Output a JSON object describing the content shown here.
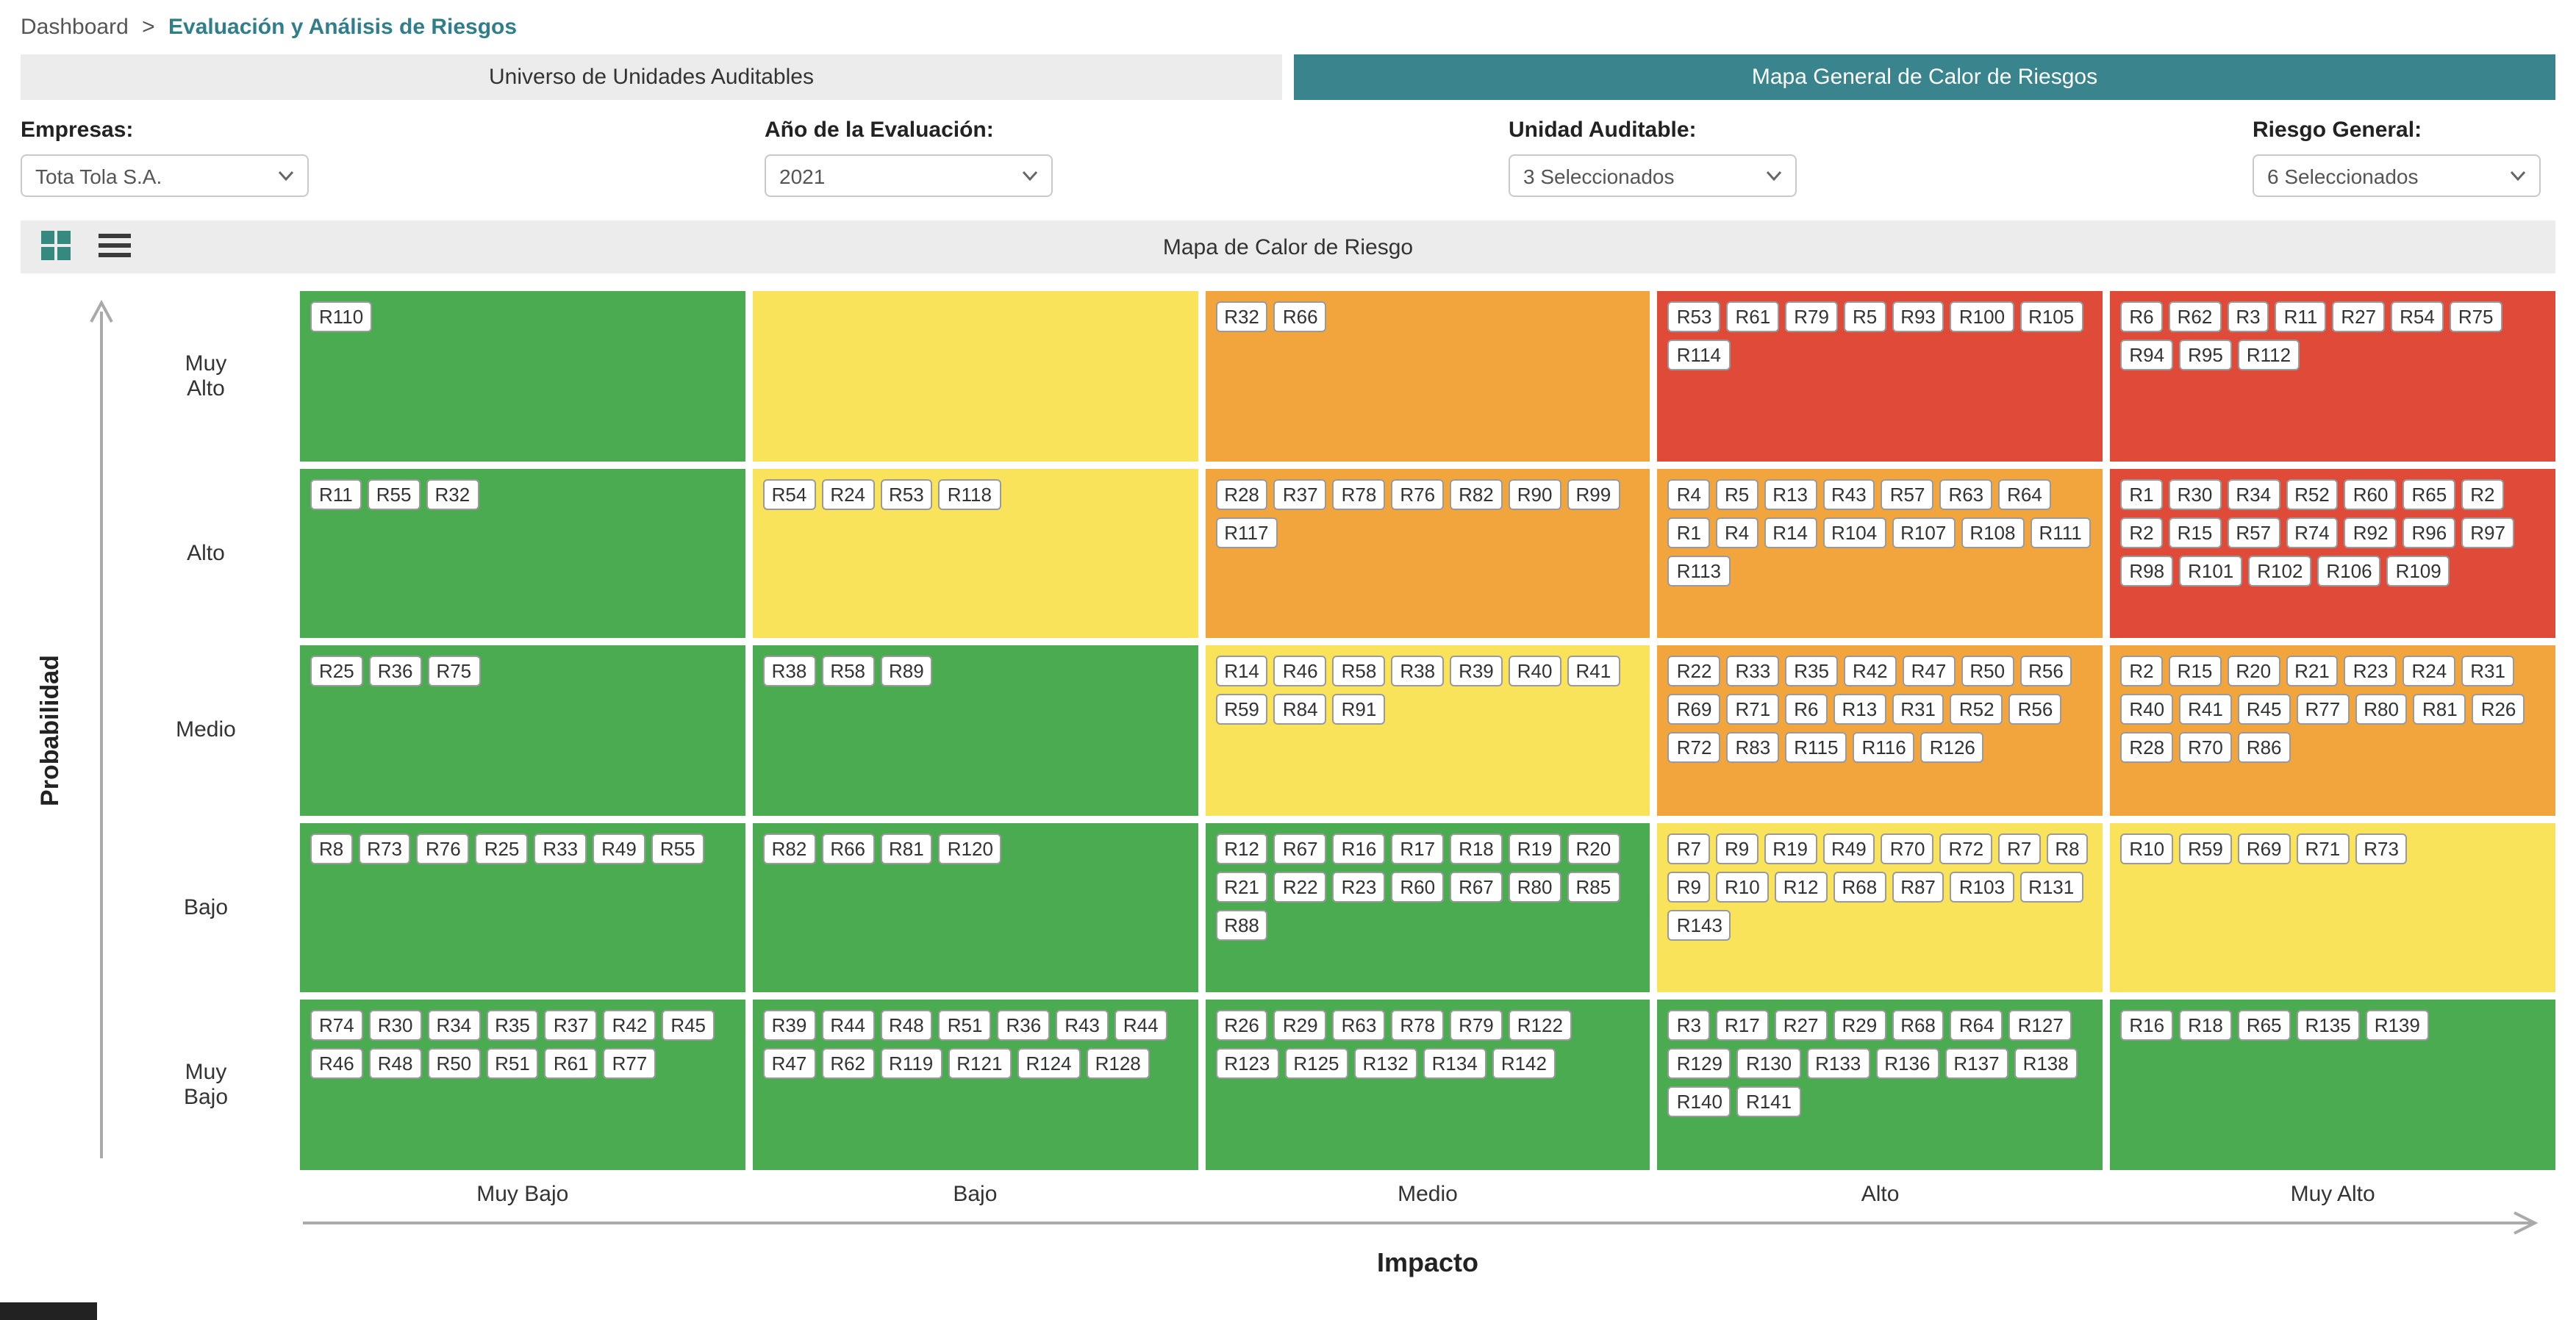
{
  "breadcrumb": {
    "root": "Dashboard",
    "separator": ">",
    "current": "Evaluación y Análisis de Riesgos"
  },
  "tabs": [
    {
      "id": "universo",
      "label": "Universo de Unidades Auditables",
      "active": false
    },
    {
      "id": "mapa-general",
      "label": "Mapa General de Calor de Riesgos",
      "active": true
    }
  ],
  "filters": [
    {
      "id": "empresas",
      "label": "Empresas:",
      "value": "Tota Tola S.A."
    },
    {
      "id": "anio-evaluacion",
      "label": "Año de la Evaluación:",
      "value": "2021"
    },
    {
      "id": "unidad-auditable",
      "label": "Unidad Auditable:",
      "value": "3 Seleccionados"
    },
    {
      "id": "riesgo-general",
      "label": "Riesgo General:",
      "value": "6 Seleccionados"
    }
  ],
  "toolbar": {
    "title": "Mapa de Calor de Riesgo",
    "view_buttons": [
      {
        "id": "grid",
        "icon": "grid-view-icon"
      },
      {
        "id": "list",
        "icon": "list-view-icon"
      }
    ]
  },
  "colors": {
    "accent": "#39848d",
    "breadcrumb_link": "#2f7e8a",
    "green": "#4aab50",
    "yellow": "#f8e35a",
    "orange": "#f2a53c",
    "red": "#df4a39"
  },
  "heatmap": {
    "y_axis_label": "Probabilidad",
    "x_axis_label": "Impacto",
    "columns": [
      "Muy Bajo",
      "Bajo",
      "Medio",
      "Alto",
      "Muy Alto"
    ],
    "colors": {
      "green": "#4aab50",
      "yellow": "#f8e35a",
      "orange": "#f2a53c",
      "red": "#df4a39"
    },
    "rows": [
      {
        "label": "Muy Alto",
        "cells": [
          {
            "color": "green",
            "risks": [
              "R110"
            ]
          },
          {
            "color": "yellow",
            "risks": []
          },
          {
            "color": "orange",
            "risks": [
              "R32",
              "R66"
            ]
          },
          {
            "color": "red",
            "risks": [
              "R53",
              "R61",
              "R79",
              "R5",
              "R93",
              "R100",
              "R105",
              "R114"
            ]
          },
          {
            "color": "red",
            "risks": [
              "R6",
              "R62",
              "R3",
              "R11",
              "R27",
              "R54",
              "R75",
              "R94",
              "R95",
              "R112"
            ]
          }
        ]
      },
      {
        "label": "Alto",
        "cells": [
          {
            "color": "green",
            "risks": [
              "R11",
              "R55",
              "R32"
            ]
          },
          {
            "color": "yellow",
            "risks": [
              "R54",
              "R24",
              "R53",
              "R118"
            ]
          },
          {
            "color": "orange",
            "risks": [
              "R28",
              "R37",
              "R78",
              "R76",
              "R82",
              "R90",
              "R99",
              "R117"
            ]
          },
          {
            "color": "orange",
            "risks": [
              "R4",
              "R5",
              "R13",
              "R43",
              "R57",
              "R63",
              "R64",
              "R1",
              "R4",
              "R14",
              "R104",
              "R107",
              "R108",
              "R111",
              "R113"
            ]
          },
          {
            "color": "red",
            "risks": [
              "R1",
              "R30",
              "R34",
              "R52",
              "R60",
              "R65",
              "R2",
              "R2",
              "R15",
              "R57",
              "R74",
              "R92",
              "R96",
              "R97",
              "R98",
              "R101",
              "R102",
              "R106",
              "R109"
            ]
          }
        ]
      },
      {
        "label": "Medio",
        "cells": [
          {
            "color": "green",
            "risks": [
              "R25",
              "R36",
              "R75"
            ]
          },
          {
            "color": "green",
            "risks": [
              "R38",
              "R58",
              "R89"
            ]
          },
          {
            "color": "yellow",
            "risks": [
              "R14",
              "R46",
              "R58",
              "R38",
              "R39",
              "R40",
              "R41",
              "R59",
              "R84",
              "R91"
            ]
          },
          {
            "color": "orange",
            "risks": [
              "R22",
              "R33",
              "R35",
              "R42",
              "R47",
              "R50",
              "R56",
              "R69",
              "R71",
              "R6",
              "R13",
              "R31",
              "R52",
              "R56",
              "R72",
              "R83",
              "R115",
              "R116",
              "R126"
            ]
          },
          {
            "color": "orange",
            "risks": [
              "R2",
              "R15",
              "R20",
              "R21",
              "R23",
              "R24",
              "R31",
              "R40",
              "R41",
              "R45",
              "R77",
              "R80",
              "R81",
              "R26",
              "R28",
              "R70",
              "R86"
            ]
          }
        ]
      },
      {
        "label": "Bajo",
        "cells": [
          {
            "color": "green",
            "risks": [
              "R8",
              "R73",
              "R76",
              "R25",
              "R33",
              "R49",
              "R55"
            ]
          },
          {
            "color": "green",
            "risks": [
              "R82",
              "R66",
              "R81",
              "R120"
            ]
          },
          {
            "color": "green",
            "risks": [
              "R12",
              "R67",
              "R16",
              "R17",
              "R18",
              "R19",
              "R20",
              "R21",
              "R22",
              "R23",
              "R60",
              "R67",
              "R80",
              "R85",
              "R88"
            ]
          },
          {
            "color": "yellow",
            "risks": [
              "R7",
              "R9",
              "R19",
              "R49",
              "R70",
              "R72",
              "R7",
              "R8",
              "R9",
              "R10",
              "R12",
              "R68",
              "R87",
              "R103",
              "R131",
              "R143"
            ]
          },
          {
            "color": "yellow",
            "risks": [
              "R10",
              "R59",
              "R69",
              "R71",
              "R73"
            ]
          }
        ]
      },
      {
        "label": "Muy Bajo",
        "cells": [
          {
            "color": "green",
            "risks": [
              "R74",
              "R30",
              "R34",
              "R35",
              "R37",
              "R42",
              "R45",
              "R46",
              "R48",
              "R50",
              "R51",
              "R61",
              "R77"
            ]
          },
          {
            "color": "green",
            "risks": [
              "R39",
              "R44",
              "R48",
              "R51",
              "R36",
              "R43",
              "R44",
              "R47",
              "R62",
              "R119",
              "R121",
              "R124",
              "R128"
            ]
          },
          {
            "color": "green",
            "risks": [
              "R26",
              "R29",
              "R63",
              "R78",
              "R79",
              "R122",
              "R123",
              "R125",
              "R132",
              "R134",
              "R142"
            ]
          },
          {
            "color": "green",
            "risks": [
              "R3",
              "R17",
              "R27",
              "R29",
              "R68",
              "R64",
              "R127",
              "R129",
              "R130",
              "R133",
              "R136",
              "R137",
              "R138",
              "R140",
              "R141"
            ]
          },
          {
            "color": "green",
            "risks": [
              "R16",
              "R18",
              "R65",
              "R135",
              "R139"
            ]
          }
        ]
      }
    ]
  }
}
